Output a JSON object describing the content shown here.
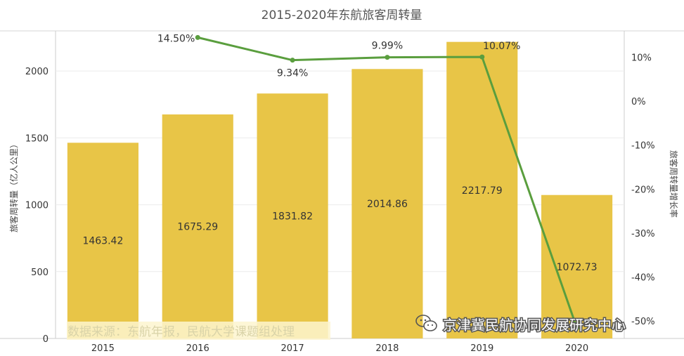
{
  "chart_data": {
    "type": "bar",
    "title": "2015-2020年东航旅客周转量",
    "categories": [
      "2015",
      "2016",
      "2017",
      "2018",
      "2019",
      "2020"
    ],
    "series": [
      {
        "name": "",
        "type": "bar",
        "axis": "left",
        "values": [
          1463.42,
          1675.29,
          1831.82,
          2014.86,
          2217.79,
          1072.73
        ]
      },
      {
        "name": "",
        "type": "line",
        "axis": "right",
        "values": [
          null,
          14.5,
          9.34,
          9.99,
          10.07,
          -51.6
        ]
      }
    ],
    "value_labels": [
      "1463.42",
      "1675.29",
      "1831.82",
      "2014.86",
      "2217.79",
      "1072.73"
    ],
    "rate_labels": [
      "",
      "14.50%",
      "9.34%",
      "9.99%",
      "10.07%",
      ""
    ],
    "ylabel": "旅客周转量（亿人公里）",
    "y2label": "旅客周转量增长率",
    "ylim": [
      0,
      2300
    ],
    "y2lim": [
      -54,
      16
    ],
    "yticks": [
      0,
      500,
      1000,
      1500,
      2000
    ],
    "ytick_labels": [
      "0",
      "500",
      "1000",
      "1500",
      "2000"
    ],
    "y2ticks": [
      10,
      0,
      -10,
      -20,
      -30,
      -40,
      -50
    ],
    "y2tick_labels": [
      "10%",
      "0%",
      "-10%",
      "-20%",
      "-30%",
      "-40%",
      "-50%"
    ],
    "grid": true,
    "colors": {
      "bar": "#e8c547",
      "line": "#5a9e3e"
    }
  },
  "source_note": "数据来源：东航年报，民航大学课题组处理",
  "watermark": "京津冀民航协同发展研究中心"
}
